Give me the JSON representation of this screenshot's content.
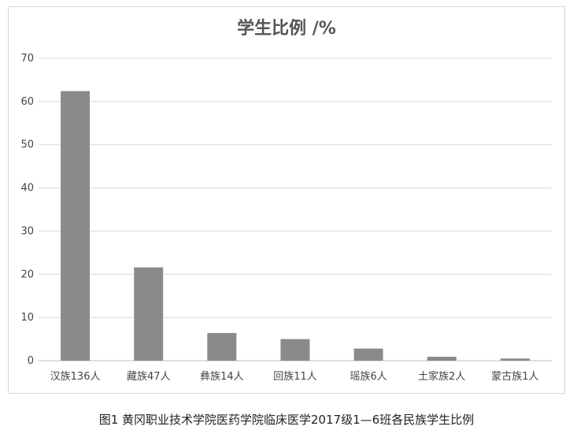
{
  "caption": "图1 黄冈职业技术学院医药学院临床医学2017级1—6班各民族学生比例",
  "colors": {
    "bar": "#8a8a8a",
    "grid": "#d9d9d9",
    "axis": "#bfbfbf"
  },
  "chart_data": {
    "type": "bar",
    "title": "学生比例 /%",
    "xlabel": "",
    "ylabel": "",
    "ylim": [
      0,
      70
    ],
    "yticks": [
      0,
      10,
      20,
      30,
      40,
      50,
      60,
      70
    ],
    "grid": true,
    "legend": "none",
    "categories": [
      "汉族136人",
      "藏族47人",
      "彝族14人",
      "回族11人",
      "瑶族6人",
      "土家族2人",
      "蒙古族1人"
    ],
    "values": [
      62.4,
      21.6,
      6.4,
      5.0,
      2.8,
      0.9,
      0.5
    ]
  }
}
